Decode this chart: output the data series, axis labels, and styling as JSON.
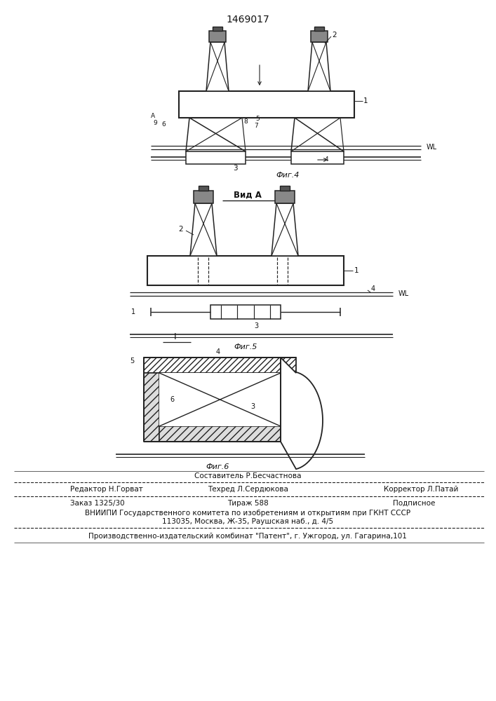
{
  "patent_number": "1469017",
  "fig4_label": "Фиг.4",
  "vid_label": "Вид A",
  "fig5_label": "Фиг.5",
  "fig6_label": "Фиг.6",
  "footer_sostavitel": "Составитель Р.Бесчастнова",
  "footer_redaktor": "Редактор Н.Горват",
  "footer_tehred": "Техред Л.Сердюкова",
  "footer_korrektor": "Корректор Л.Патай",
  "footer_zakaz": "Заказ 1325/30",
  "footer_tirazh": "Тираж 588",
  "footer_podpisnoe": "Подписное",
  "footer_vniip": "ВНИИПИ Государственного комитета по изобретениям и открытиям при ГКНТ СССР",
  "footer_address": "113035, Москва, Ж-35, Раушская наб., д. 4/5",
  "footer_proizv": "Производственно-издательский комбинат \"Патент\", г. Ужгород, ул. Гагарина,101",
  "bg_color": "#ffffff",
  "line_color": "#222222",
  "text_color": "#111111"
}
